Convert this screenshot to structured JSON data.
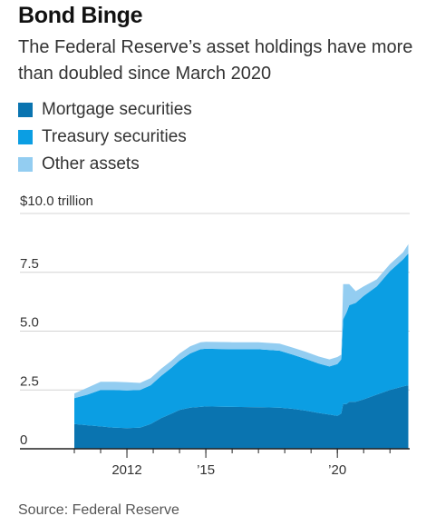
{
  "title": "Bond Binge",
  "subtitle": "The Federal Reserve’s asset holdings have more than doubled since March 2020",
  "source": "Source: Federal Reserve",
  "colors": {
    "mortgage": "#0a74b0",
    "treasury": "#0b9ee3",
    "other": "#93cdf1",
    "axis": "#222222",
    "grid": "#d4d4d4"
  },
  "chart_data": {
    "type": "area",
    "stacked": true,
    "legend": [
      "Mortgage securities",
      "Treasury securities",
      "Other assets"
    ],
    "legend_placement": "top-left",
    "y_unit_label": "$10.0 trillion",
    "y_ticks": [
      "0",
      "2.5",
      "5.0",
      "7.5"
    ],
    "x_ticks": [
      {
        "label": "2012",
        "x": 2012
      },
      {
        "label": "’15",
        "x": 2015
      },
      {
        "label": "’20",
        "x": 2020
      }
    ],
    "ylim": [
      0,
      10
    ],
    "xlim": [
      2010.0,
      2022.75
    ],
    "grid": "horizontal",
    "x": [
      2010.0,
      2010.5,
      2011.0,
      2011.5,
      2012.0,
      2012.5,
      2012.9,
      2013.3,
      2013.7,
      2014.0,
      2014.4,
      2014.8,
      2015.0,
      2016.0,
      2017.0,
      2017.8,
      2018.3,
      2018.8,
      2019.3,
      2019.7,
      2020.0,
      2020.15,
      2020.22,
      2020.35,
      2020.45,
      2020.7,
      2021.0,
      2021.5,
      2022.0,
      2022.5,
      2022.7
    ],
    "series": [
      {
        "name": "Mortgage securities",
        "values": [
          1.05,
          1.0,
          0.95,
          0.9,
          0.88,
          0.9,
          1.05,
          1.3,
          1.5,
          1.65,
          1.75,
          1.78,
          1.8,
          1.78,
          1.77,
          1.75,
          1.7,
          1.62,
          1.52,
          1.45,
          1.4,
          1.5,
          1.9,
          1.9,
          2.0,
          2.0,
          2.1,
          2.3,
          2.5,
          2.65,
          2.7
        ]
      },
      {
        "name": "Treasury securities",
        "values": [
          1.1,
          1.3,
          1.55,
          1.6,
          1.6,
          1.6,
          1.65,
          1.8,
          1.95,
          2.1,
          2.3,
          2.45,
          2.45,
          2.45,
          2.46,
          2.42,
          2.3,
          2.2,
          2.1,
          2.05,
          2.2,
          2.3,
          3.6,
          3.9,
          4.1,
          4.2,
          4.4,
          4.6,
          5.05,
          5.4,
          5.6
        ]
      },
      {
        "name": "Other assets",
        "values": [
          0.2,
          0.3,
          0.35,
          0.35,
          0.35,
          0.3,
          0.3,
          0.3,
          0.3,
          0.3,
          0.3,
          0.3,
          0.3,
          0.3,
          0.3,
          0.3,
          0.3,
          0.3,
          0.3,
          0.3,
          0.3,
          0.2,
          1.5,
          1.2,
          0.9,
          0.5,
          0.4,
          0.3,
          0.3,
          0.3,
          0.4
        ]
      }
    ]
  }
}
